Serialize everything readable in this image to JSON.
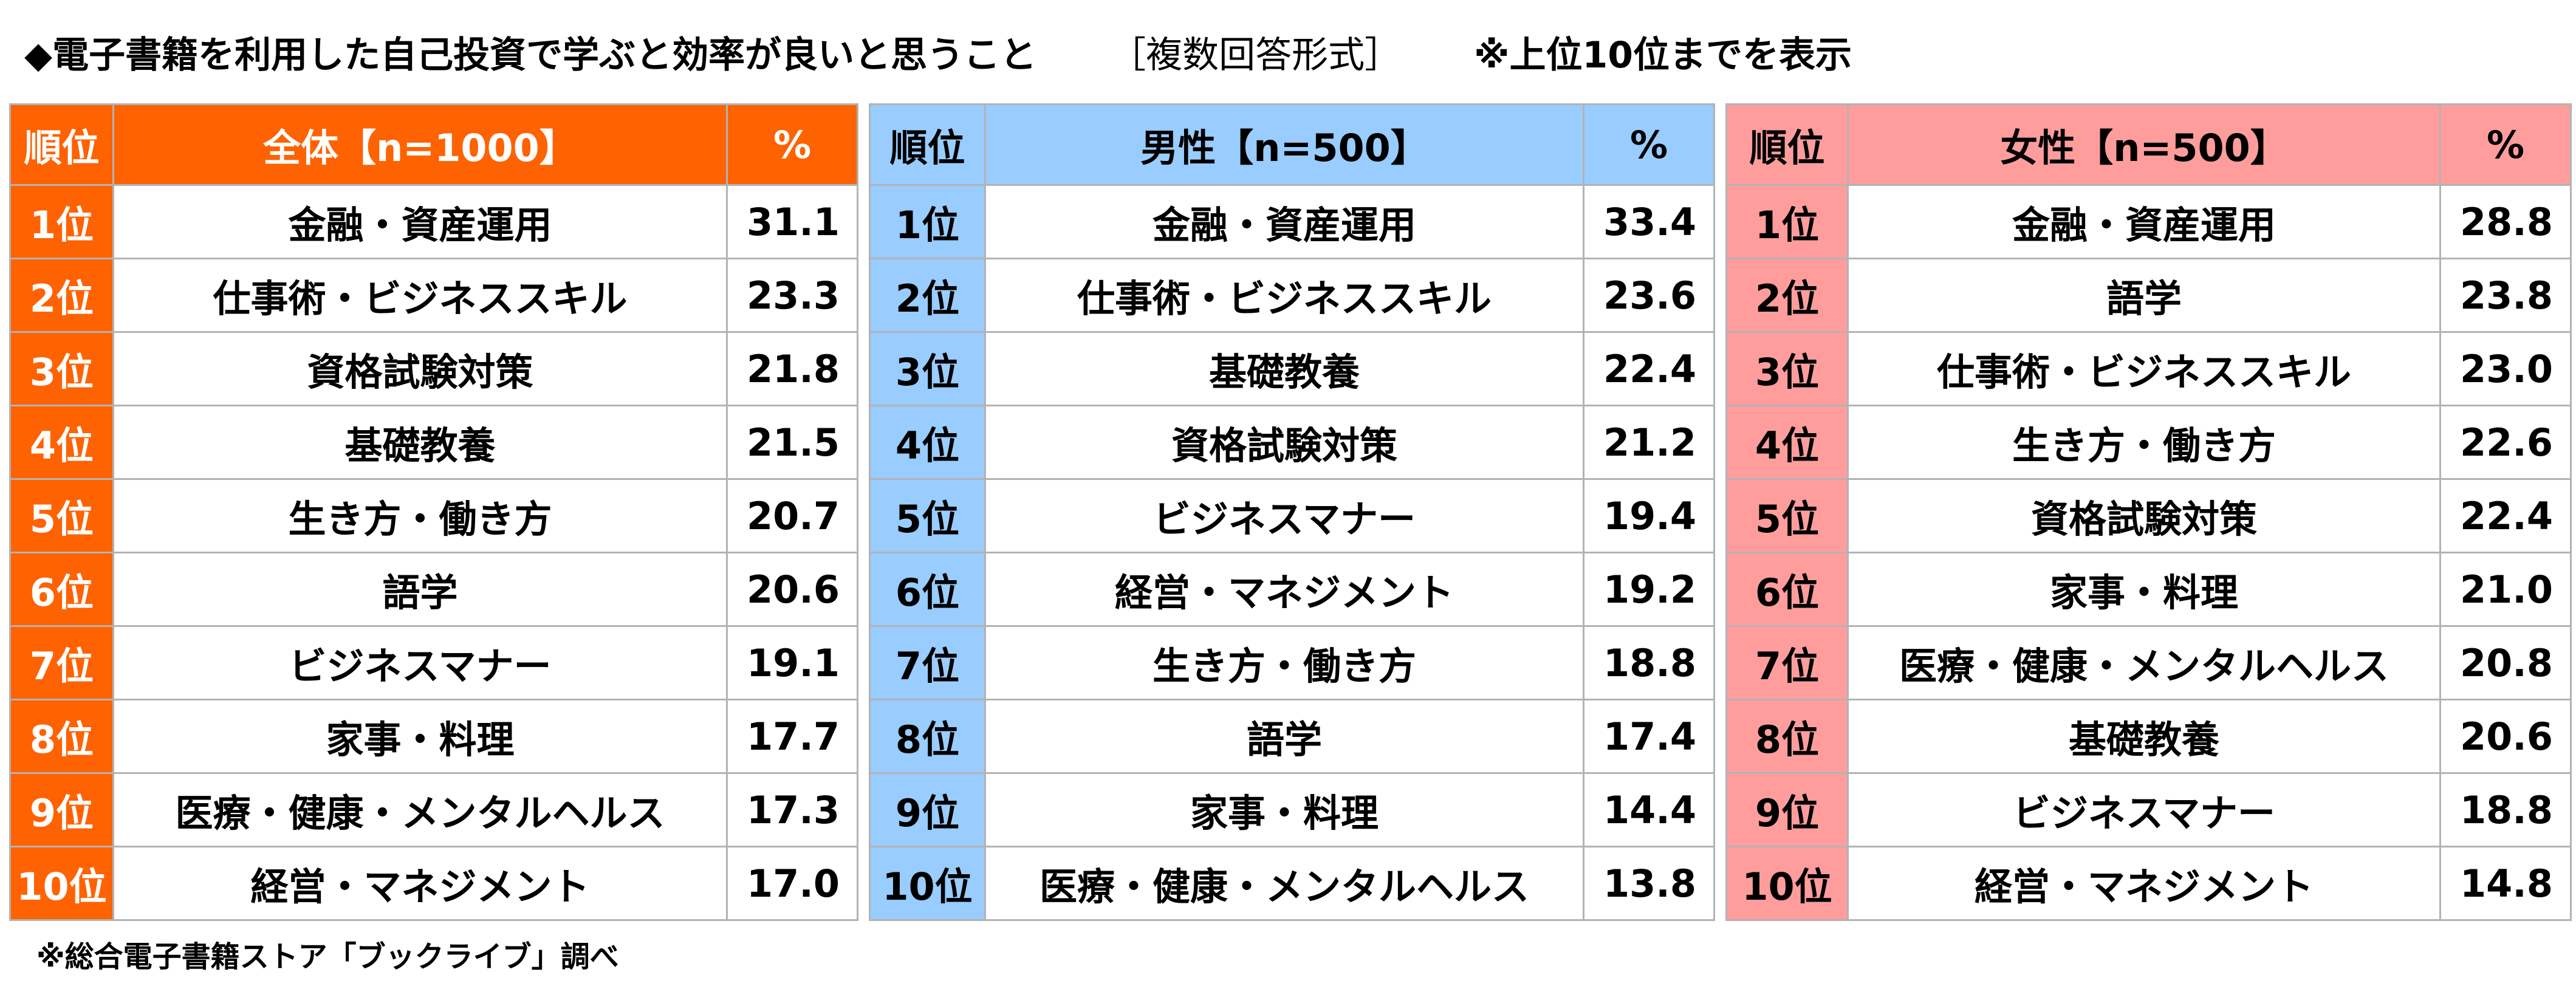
{
  "title": {
    "main": "◆電子書籍を利用した自己投資で学ぶと効率が良いと思うこと",
    "format": "［複数回答形式］",
    "note": "※上位10位までを表示"
  },
  "footnote": "※総合電子書籍ストア「ブックライブ」調べ",
  "colors": {
    "overall_header": "#ff6200",
    "male_header": "#99ccff",
    "female_header": "#ff9d9d",
    "border": "#b3b3b3"
  },
  "tables": {
    "overall": {
      "header": {
        "rank": "順位",
        "group": "全体【n=1000】",
        "pct": "%"
      },
      "rows": [
        {
          "rank": "1位",
          "item": "金融・資産運用",
          "pct": "31.1"
        },
        {
          "rank": "2位",
          "item": "仕事術・ビジネススキル",
          "pct": "23.3"
        },
        {
          "rank": "3位",
          "item": "資格試験対策",
          "pct": "21.8"
        },
        {
          "rank": "4位",
          "item": "基礎教養",
          "pct": "21.5"
        },
        {
          "rank": "5位",
          "item": "生き方・働き方",
          "pct": "20.7"
        },
        {
          "rank": "6位",
          "item": "語学",
          "pct": "20.6"
        },
        {
          "rank": "7位",
          "item": "ビジネスマナー",
          "pct": "19.1"
        },
        {
          "rank": "8位",
          "item": "家事・料理",
          "pct": "17.7"
        },
        {
          "rank": "9位",
          "item": "医療・健康・メンタルヘルス",
          "pct": "17.3"
        },
        {
          "rank": "10位",
          "item": "経営・マネジメント",
          "pct": "17.0"
        }
      ]
    },
    "male": {
      "header": {
        "rank": "順位",
        "group": "男性【n=500】",
        "pct": "%"
      },
      "rows": [
        {
          "rank": "1位",
          "item": "金融・資産運用",
          "pct": "33.4"
        },
        {
          "rank": "2位",
          "item": "仕事術・ビジネススキル",
          "pct": "23.6"
        },
        {
          "rank": "3位",
          "item": "基礎教養",
          "pct": "22.4"
        },
        {
          "rank": "4位",
          "item": "資格試験対策",
          "pct": "21.2"
        },
        {
          "rank": "5位",
          "item": "ビジネスマナー",
          "pct": "19.4"
        },
        {
          "rank": "6位",
          "item": "経営・マネジメント",
          "pct": "19.2"
        },
        {
          "rank": "7位",
          "item": "生き方・働き方",
          "pct": "18.8"
        },
        {
          "rank": "8位",
          "item": "語学",
          "pct": "17.4"
        },
        {
          "rank": "9位",
          "item": "家事・料理",
          "pct": "14.4"
        },
        {
          "rank": "10位",
          "item": "医療・健康・メンタルヘルス",
          "pct": "13.8"
        }
      ]
    },
    "female": {
      "header": {
        "rank": "順位",
        "group": "女性【n=500】",
        "pct": "%"
      },
      "rows": [
        {
          "rank": "1位",
          "item": "金融・資産運用",
          "pct": "28.8"
        },
        {
          "rank": "2位",
          "item": "語学",
          "pct": "23.8"
        },
        {
          "rank": "3位",
          "item": "仕事術・ビジネススキル",
          "pct": "23.0"
        },
        {
          "rank": "4位",
          "item": "生き方・働き方",
          "pct": "22.6"
        },
        {
          "rank": "5位",
          "item": "資格試験対策",
          "pct": "22.4"
        },
        {
          "rank": "6位",
          "item": "家事・料理",
          "pct": "21.0"
        },
        {
          "rank": "7位",
          "item": "医療・健康・メンタルヘルス",
          "pct": "20.8"
        },
        {
          "rank": "8位",
          "item": "基礎教養",
          "pct": "20.6"
        },
        {
          "rank": "9位",
          "item": "ビジネスマナー",
          "pct": "18.8"
        },
        {
          "rank": "10位",
          "item": "経営・マネジメント",
          "pct": "14.8"
        }
      ]
    }
  }
}
